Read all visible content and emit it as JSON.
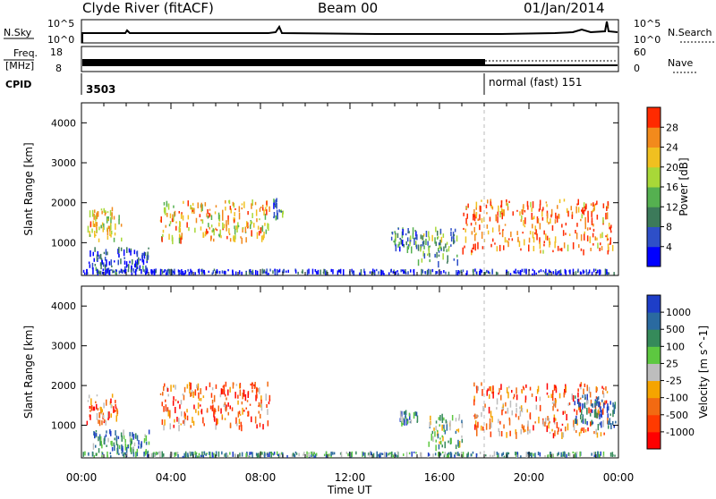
{
  "header": {
    "station": "Clyde River (fitACF)",
    "beam": "Beam 00",
    "date": "01/Jan/2014"
  },
  "top_panels": {
    "nsky_label": "N.Sky",
    "nsky_ticks": [
      "10^5",
      "10^0"
    ],
    "nsearch_label": "N.Search",
    "nsearch_ticks": [
      "10^5",
      "10^0"
    ],
    "freq_label_1": "Freq.",
    "freq_label_2": "[MHz]",
    "freq_ticks": [
      "18",
      "8"
    ],
    "nave_label": "Nave",
    "nave_ticks": [
      "60",
      "0"
    ],
    "cpid_label": "CPID",
    "cpid_value": "3503",
    "mode_label": "normal (fast) 151"
  },
  "time_axis": {
    "ticks": [
      "00:00",
      "04:00",
      "08:00",
      "12:00",
      "16:00",
      "20:00",
      "00:00"
    ],
    "label": "Time UT"
  },
  "chart_data": [
    {
      "type": "heatmap",
      "name": "power",
      "ylabel": "Slant Range [km]",
      "ylim": [
        180,
        4500
      ],
      "xlim_hours": [
        0,
        24
      ],
      "yticks": [
        "4000",
        "3000",
        "2000",
        "1000"
      ],
      "colorbar_label": "Power [dB]",
      "colorbar_ticks": [
        "28",
        "24",
        "20",
        "16",
        "12",
        "8",
        "4"
      ],
      "colorbar_colors": [
        "#0000ff",
        "#2e4fc8",
        "#3c7a5a",
        "#55b050",
        "#a8d838",
        "#f0c020",
        "#f28a1c",
        "#ff2a00"
      ],
      "regions": [
        {
          "t0": 0.2,
          "t1": 1.8,
          "r0": 1100,
          "r1": 1900,
          "level": 0.65
        },
        {
          "t0": 0.3,
          "t1": 3.0,
          "r0": 300,
          "r1": 900,
          "level": 0.15
        },
        {
          "t0": 3.5,
          "t1": 8.4,
          "r0": 1100,
          "r1": 2100,
          "level": 0.7
        },
        {
          "t0": 8.5,
          "t1": 9.0,
          "r0": 1600,
          "r1": 2200,
          "level": 0.3
        },
        {
          "t0": 13.8,
          "t1": 15.0,
          "r0": 900,
          "r1": 1400,
          "level": 0.3
        },
        {
          "t0": 15.0,
          "t1": 16.8,
          "r0": 500,
          "r1": 1400,
          "level": 0.4
        },
        {
          "t0": 17.0,
          "t1": 23.8,
          "r0": 800,
          "r1": 2100,
          "level": 0.85
        },
        {
          "t0": 0.0,
          "t1": 24.0,
          "r0": 180,
          "r1": 350,
          "level": 0.1
        }
      ]
    },
    {
      "type": "heatmap",
      "name": "velocity",
      "ylabel": "Slant Range [km]",
      "ylim": [
        180,
        4500
      ],
      "xlim_hours": [
        0,
        24
      ],
      "yticks": [
        "4000",
        "3000",
        "2000",
        "1000"
      ],
      "colorbar_label": "Velocity [m s^-1]",
      "colorbar_ticks": [
        "1000",
        "500",
        "100",
        "25",
        "-25",
        "-100",
        "-500",
        "-1000"
      ],
      "colorbar_colors": [
        "#ff0000",
        "#ff3a00",
        "#f26a12",
        "#f5a400",
        "#bdbdbd",
        "#5dc840",
        "#358a5a",
        "#2a6aa0",
        "#1e3ec8"
      ],
      "regions": [
        {
          "t0": 0.2,
          "t1": 1.6,
          "r0": 1100,
          "r1": 1800,
          "level": 0.25
        },
        {
          "t0": 0.5,
          "t1": 3.0,
          "r0": 200,
          "r1": 900,
          "level": 0.75
        },
        {
          "t0": 3.5,
          "t1": 8.4,
          "r0": 1000,
          "r1": 2100,
          "level": 0.25
        },
        {
          "t0": 14.2,
          "t1": 15.0,
          "r0": 1100,
          "r1": 1400,
          "level": 0.75
        },
        {
          "t0": 15.5,
          "t1": 17.0,
          "r0": 500,
          "r1": 1300,
          "level": 0.6
        },
        {
          "t0": 17.5,
          "t1": 23.5,
          "r0": 800,
          "r1": 2100,
          "level": 0.3
        },
        {
          "t0": 22.0,
          "t1": 24.0,
          "r0": 1000,
          "r1": 1800,
          "level": 0.9
        },
        {
          "t0": 0.0,
          "t1": 24.0,
          "r0": 180,
          "r1": 350,
          "level": 0.7
        }
      ]
    }
  ]
}
